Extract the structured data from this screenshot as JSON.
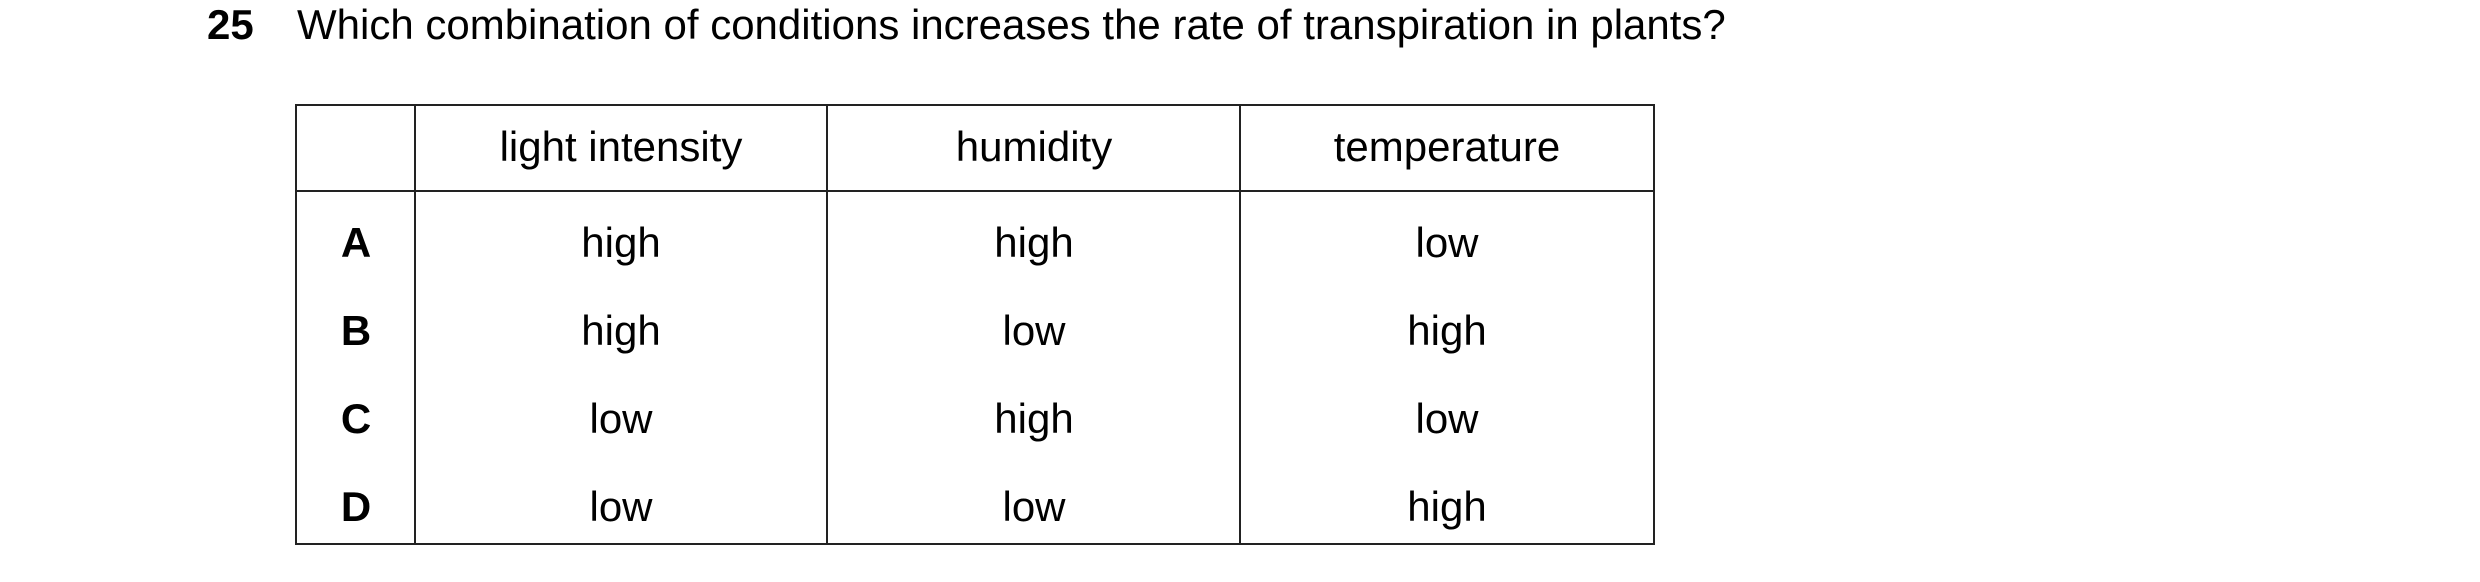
{
  "question": {
    "number": "25",
    "text": "Which combination of conditions increases the rate of transpiration in plants?"
  },
  "table": {
    "header": [
      "light intensity",
      "humidity",
      "temperature"
    ],
    "rows": [
      [
        "A",
        "high",
        "high",
        "low"
      ],
      [
        "B",
        "high",
        "low",
        "high"
      ],
      [
        "C",
        "low",
        "high",
        "low"
      ],
      [
        "D",
        "low",
        "low",
        "high"
      ]
    ]
  }
}
